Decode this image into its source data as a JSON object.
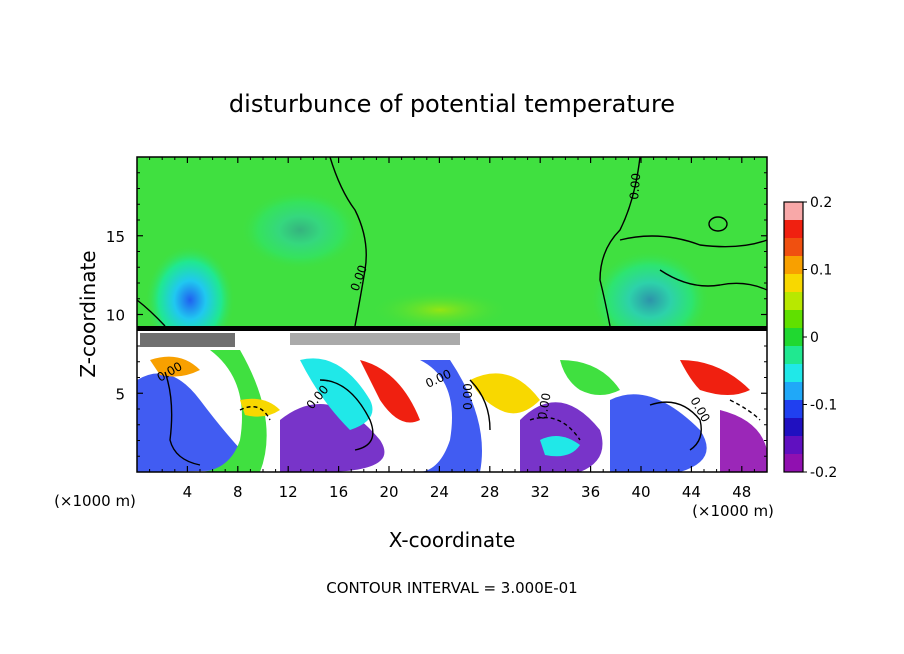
{
  "chart_data": {
    "type": "heatmap",
    "title": "disturbunce of potential temperature",
    "xlabel": "X-coordinate",
    "ylabel": "Z-coordinate",
    "x_unit": "(×1000 m)",
    "x_unit_right": "(×1000 m)",
    "xlim": [
      0,
      50
    ],
    "ylim": [
      0,
      20
    ],
    "x_ticks": [
      4,
      8,
      12,
      16,
      20,
      24,
      28,
      32,
      36,
      40,
      44,
      48
    ],
    "y_ticks": [
      5,
      10,
      15
    ],
    "colorbar": {
      "min": -0.2,
      "max": 0.2,
      "tick_labels": [
        "0.2",
        "0.1",
        "0",
        "-0.1",
        "-0.2"
      ],
      "tick_values": [
        0.2,
        0.1,
        0,
        -0.1,
        -0.2
      ],
      "colors": [
        "#f8a8a8",
        "#f02010",
        "#f05010",
        "#f8a000",
        "#f8d800",
        "#b8e800",
        "#60e000",
        "#20d830",
        "#20e890",
        "#20e8e8",
        "#20a8f8",
        "#2040f0",
        "#2010c0",
        "#6010c0",
        "#9010b0"
      ]
    },
    "contour_labels": [
      "0.00",
      "0.00",
      "0.00",
      "0.00",
      "0.00",
      "0.00",
      "0.00",
      "0.00"
    ],
    "footer": "CONTOUR INTERVAL = 3.000E-01"
  },
  "colors": {
    "upper_field": "#40e040",
    "lower_field": "#ffffff",
    "frame": "#000000"
  }
}
